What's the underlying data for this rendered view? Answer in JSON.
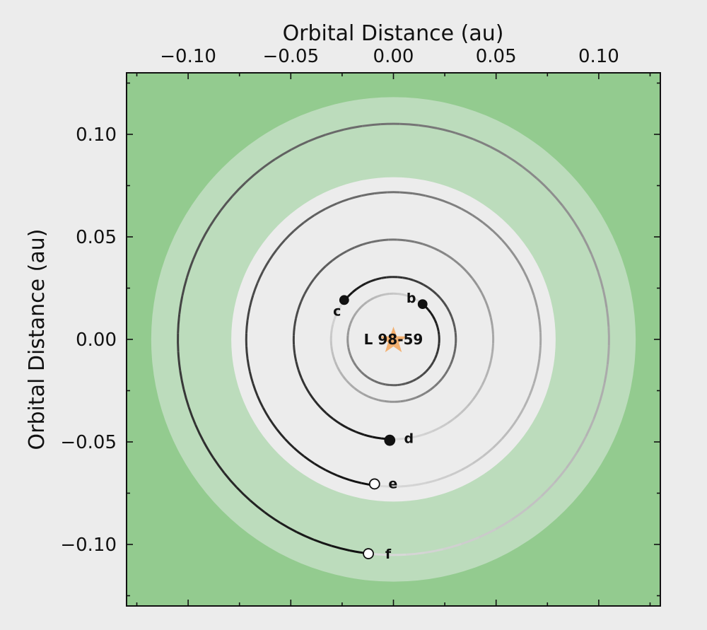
{
  "chart_data": {
    "type": "scatter",
    "xlabel": "Orbital Distance (au)",
    "ylabel": "Orbital Distance (au)",
    "xlim": [
      -0.13,
      0.13
    ],
    "ylim": [
      -0.13,
      0.13
    ],
    "x_ticks": [
      -0.1,
      -0.05,
      0.0,
      0.05,
      0.1
    ],
    "x_tick_labels": [
      "−0.10",
      "−0.05",
      "0.00",
      "0.05",
      "0.10"
    ],
    "y_ticks": [
      0.1,
      0.05,
      0.0,
      -0.05,
      -0.1
    ],
    "y_tick_labels": [
      "0.10",
      "0.05",
      "0.00",
      "−0.05",
      "−0.10"
    ],
    "x_axis_position": "top",
    "grid": false,
    "star": {
      "name": "L 98-59",
      "x": 0,
      "y": 0,
      "color": "#f4a65a",
      "icon": "star-icon"
    },
    "habitable_zone": {
      "optimistic": {
        "inner": 0.079,
        "outer": 0.118,
        "color": "#bcdcbc"
      },
      "conservative": {
        "inner": 0.09,
        "outer": 0.105,
        "color": "#bcdcbc"
      },
      "outside_color": "#93cb8f",
      "inside_color": "#ececec"
    },
    "planets": [
      {
        "name": "b",
        "semi_major_axis": 0.0223,
        "x": 0.0142,
        "y": 0.0172,
        "filled": true
      },
      {
        "name": "c",
        "semi_major_axis": 0.0304,
        "x": -0.024,
        "y": 0.0192,
        "filled": true
      },
      {
        "name": "d",
        "semi_major_axis": 0.0486,
        "x": -0.0018,
        "y": -0.0492,
        "filled": true
      },
      {
        "name": "e",
        "semi_major_axis": 0.0717,
        "x": -0.0092,
        "y": -0.0705,
        "filled": false
      },
      {
        "name": "f",
        "semi_major_axis": 0.105,
        "x": -0.0122,
        "y": -0.1045,
        "filled": false
      }
    ]
  }
}
